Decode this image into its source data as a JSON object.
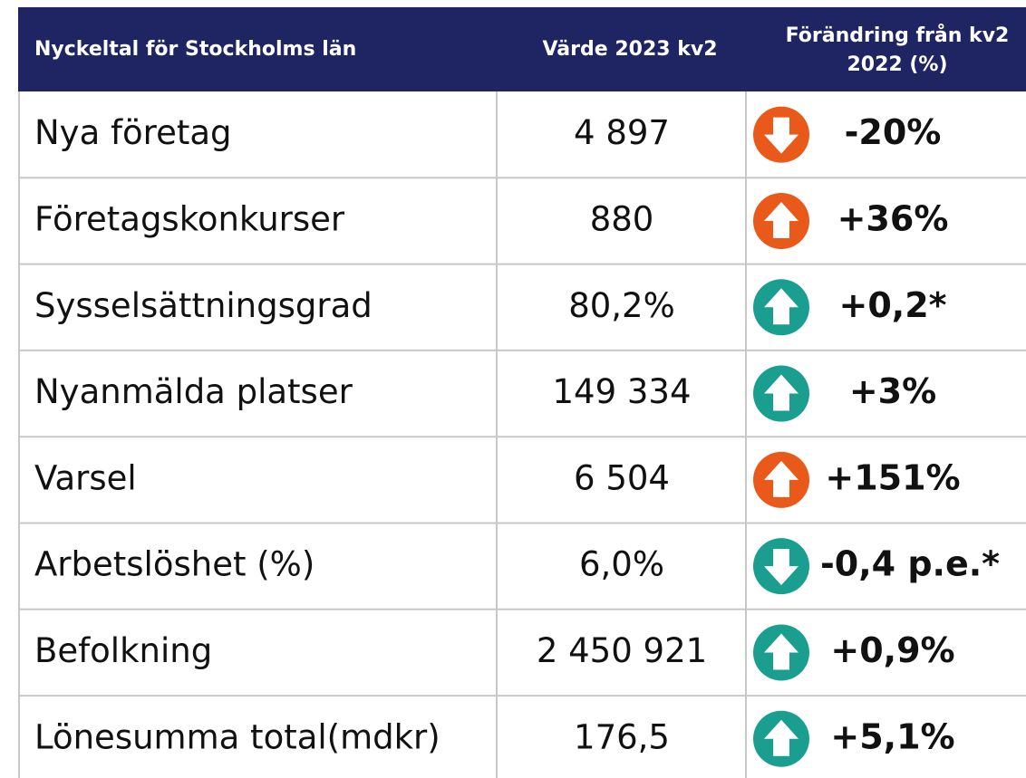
{
  "table": {
    "header": [
      "Nyckeltal för Stockholms län",
      "Värde 2023 kv2",
      [
        "Förändring från kv2",
        "2022 (%)"
      ]
    ],
    "rows": [
      {
        "name": "Nya företag",
        "value": "4 897",
        "change": "-20%",
        "trend": "down",
        "color": "#e8591a"
      },
      {
        "name": "Företagskonkurser",
        "value": "880",
        "change": "+36%",
        "trend": "up",
        "color": "#e8591a"
      },
      {
        "name": "Sysselsättningsgrad",
        "value": "80,2%",
        "change": "+0,2*",
        "trend": "up",
        "color": "#1a9e8f"
      },
      {
        "name": "Nyanmälda platser",
        "value": "149 334",
        "change": "+3%",
        "trend": "up",
        "color": "#1a9e8f"
      },
      {
        "name": "Varsel",
        "value": "6 504",
        "change": "+151%",
        "trend": "up",
        "color": "#e8591a"
      },
      {
        "name": "Arbetslöshet (%)",
        "value": "6,0%",
        "change": "-0,4 p.e.*",
        "trend": "down",
        "color": "#1a9e8f"
      },
      {
        "name": "Befolkning",
        "value": "2 450 921",
        "change": "+0,9%",
        "trend": "up",
        "color": "#1a9e8f"
      },
      {
        "name": "Lönesumma total(mdkr)",
        "value": "176,5",
        "change": "+5,1%",
        "trend": "up",
        "color": "#1a9e8f"
      }
    ]
  }
}
